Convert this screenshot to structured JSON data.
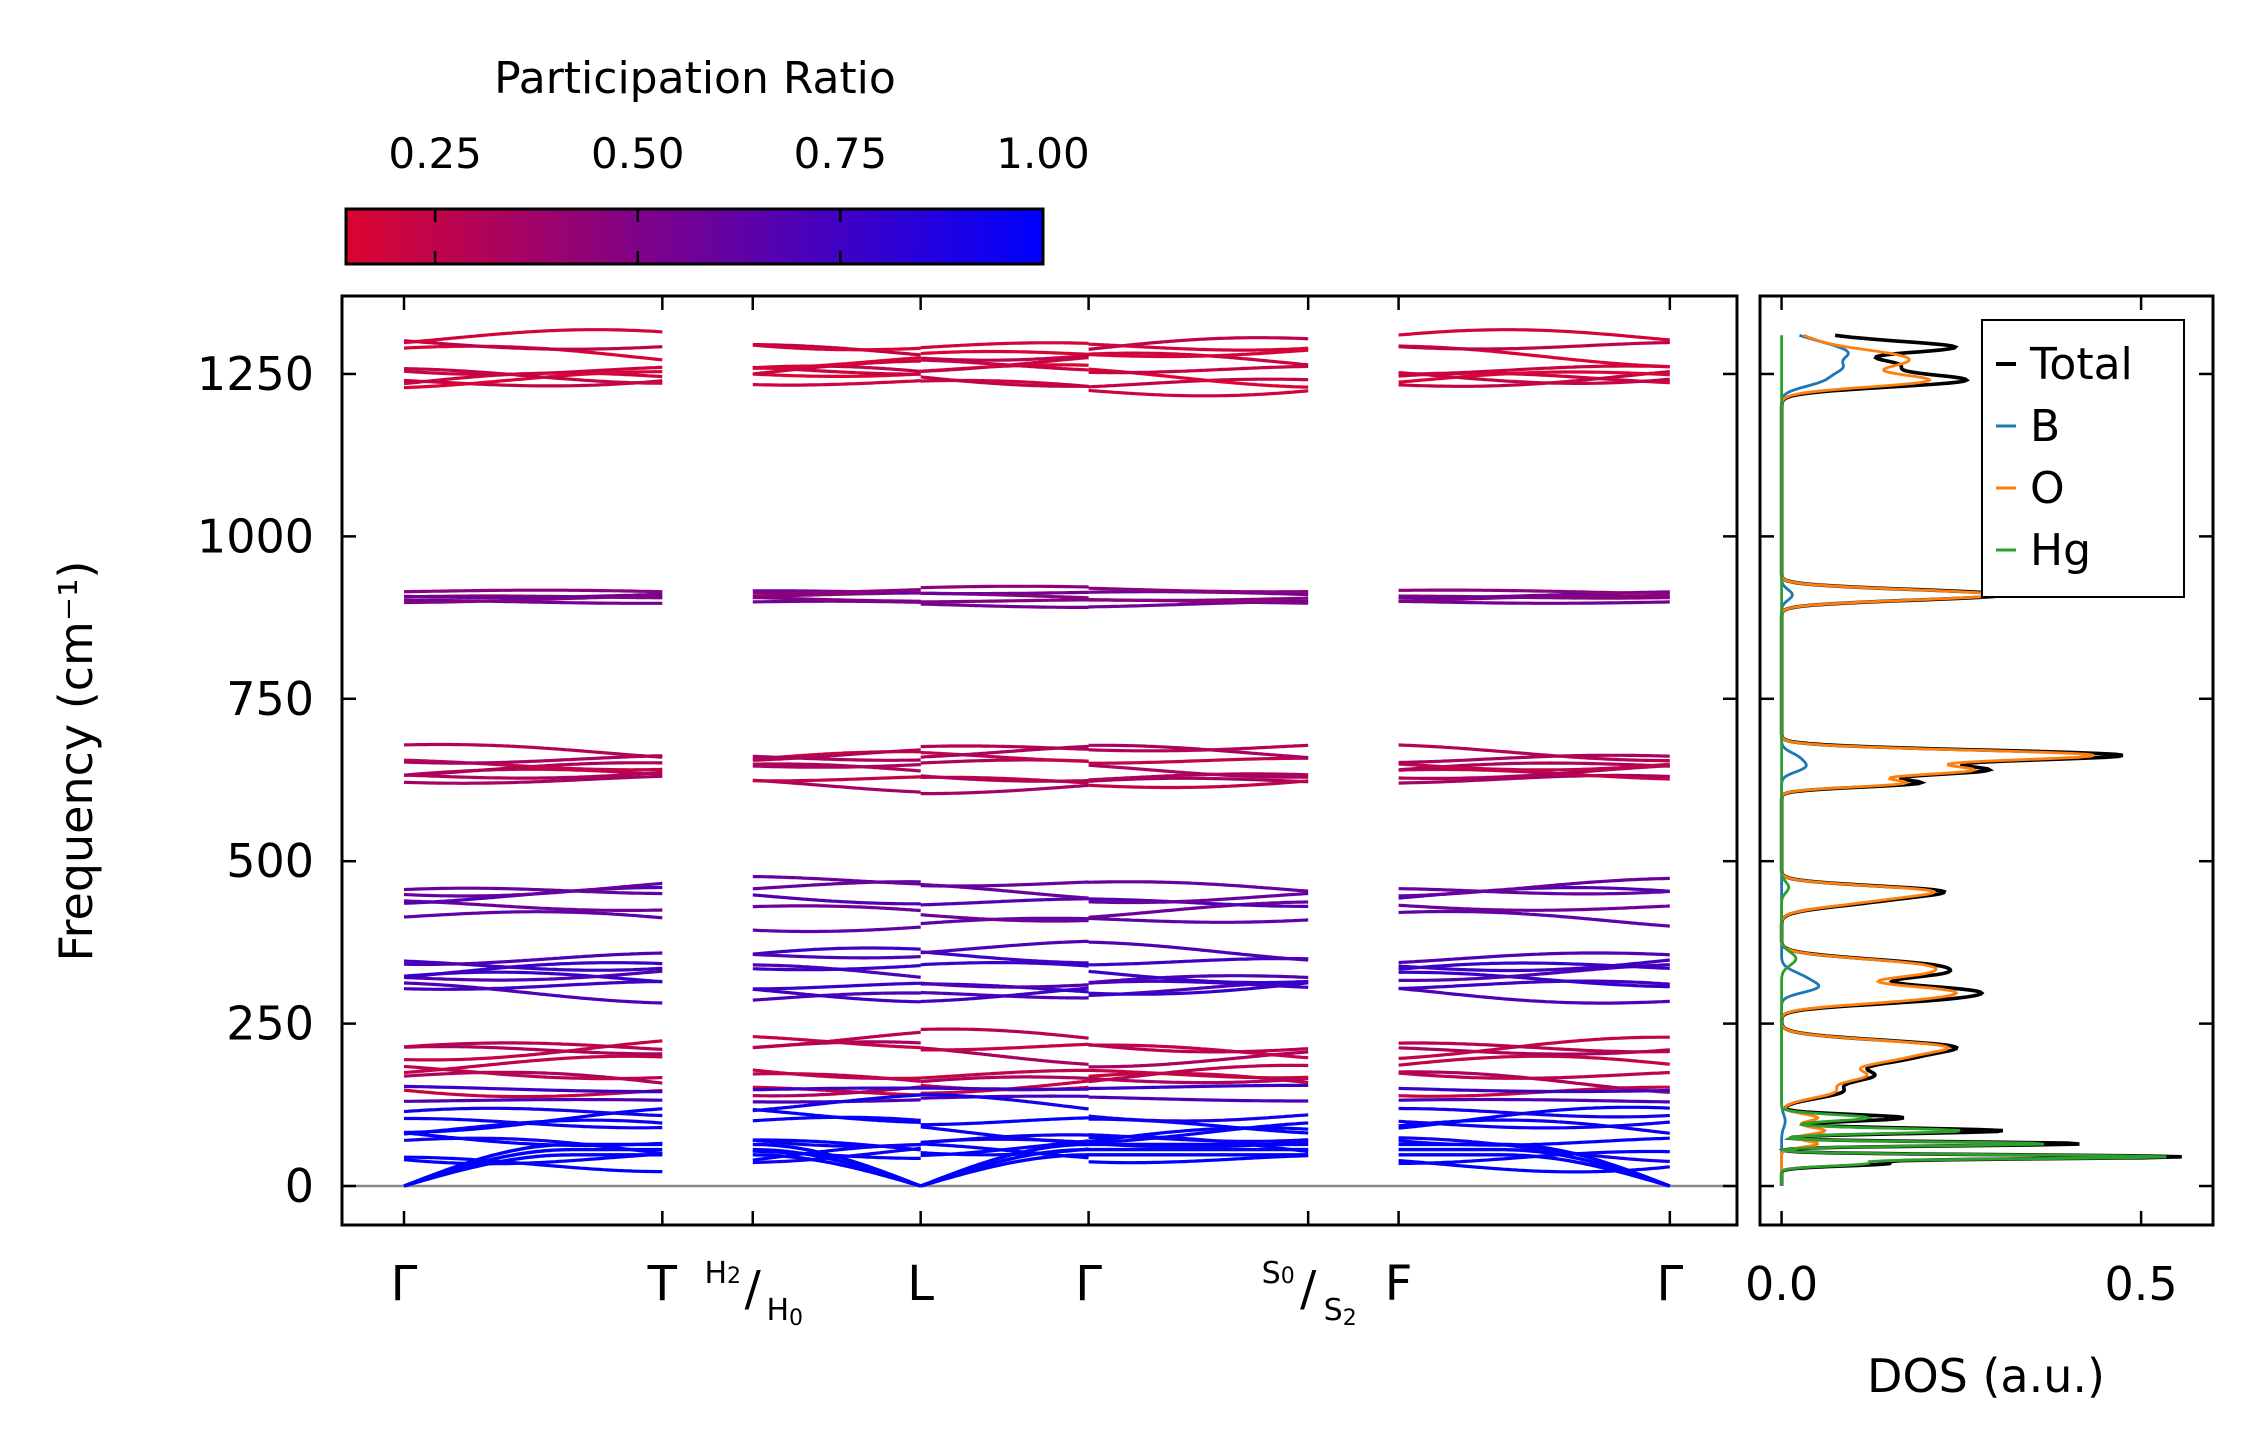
{
  "chart_data": [
    {
      "type": "line",
      "chart": "phonon-band-structure",
      "ylabel": "Frequency (cm⁻¹)",
      "ylim": [
        -60,
        1370
      ],
      "yticks": [
        0,
        250,
        500,
        750,
        1000,
        1250
      ],
      "ytick_labels": [
        "0",
        "250",
        "500",
        "750",
        "1000",
        "1250"
      ],
      "xlim": [
        -0.24,
        5.16
      ],
      "xticks": [
        0,
        1,
        1.35,
        2,
        2.65,
        3.5,
        3.85,
        4.9
      ],
      "k_labels": [
        {
          "base": "Γ"
        },
        {
          "base": "T"
        },
        {
          "top": "H",
          "top_sub": "2",
          "bottom": "H",
          "bottom_sub": "0"
        },
        {
          "base": "L"
        },
        {
          "base": "Γ"
        },
        {
          "top": "S",
          "top_sub": "0",
          "bottom": "S",
          "bottom_sub": "2"
        },
        {
          "base": "F"
        },
        {
          "base": "Γ"
        }
      ],
      "segments": [
        [
          0,
          1
        ],
        [
          1.35,
          2
        ],
        [
          2,
          2.65
        ],
        [
          2.65,
          3.5
        ],
        [
          3.85,
          4.9
        ]
      ],
      "zero_line": 0,
      "colormap": {
        "title": "Participation Ratio",
        "ticks": [
          0.25,
          0.5,
          0.75,
          1.0
        ],
        "tick_labels": [
          "0.25",
          "0.50",
          "0.75",
          "1.00"
        ],
        "vmin": 0.14,
        "vmax": 1.0,
        "low_color": "#dc0430",
        "high_color": "#0000ff"
      },
      "band_groups": [
        {
          "values": [
            1235,
            1242,
            1248,
            1255,
            1262,
            1278,
            1290,
            1298
          ],
          "pr": 0.2
        },
        {
          "values": [
            897,
            902,
            907,
            912,
            917
          ],
          "pr": 0.5
        },
        {
          "values": [
            620,
            627,
            634,
            645,
            655,
            663,
            670
          ],
          "pr": 0.3
        },
        {
          "values": [
            408,
            425,
            442,
            453,
            463
          ],
          "pr": 0.62
        },
        {
          "values": [
            296,
            303,
            310,
            322,
            333,
            348,
            358
          ],
          "pr": 0.74
        },
        {
          "values": [
            152,
            160,
            168,
            178,
            205,
            213,
            220
          ],
          "pr": 0.28
        },
        {
          "values": [
            133,
            150
          ],
          "pr": 0.72
        },
        {
          "values": [
            43,
            53,
            60,
            68,
            78,
            90,
            101,
            118
          ],
          "pr": 0.98
        }
      ],
      "acoustic_branch": {
        "gamma": 0,
        "zone_edge": 40,
        "pr": 1.0
      }
    },
    {
      "type": "line",
      "chart": "density-of-states",
      "xlabel": "DOS (a.u.)",
      "xlim": [
        -0.03,
        0.6
      ],
      "xticks": [
        0.0,
        0.5
      ],
      "xtick_labels": [
        "0.0",
        "0.5"
      ],
      "ylim": [
        -60,
        1370
      ],
      "legend": {
        "position": "top-right",
        "entries": [
          "Total",
          "B",
          "O",
          "Hg"
        ]
      },
      "series": [
        {
          "name": "Total",
          "color": "#000000",
          "peaks": [
            [
              1300,
              0.09,
              12
            ],
            [
              1290,
              0.17,
              8
            ],
            [
              1265,
              0.15,
              10
            ],
            [
              1240,
              0.25,
              10
            ],
            [
              910,
              0.31,
              8
            ],
            [
              663,
              0.47,
              8
            ],
            [
              640,
              0.28,
              8
            ],
            [
              620,
              0.18,
              6
            ],
            [
              455,
              0.18,
              8
            ],
            [
              440,
              0.12,
              10
            ],
            [
              340,
              0.19,
              10
            ],
            [
              325,
              0.14,
              8
            ],
            [
              300,
              0.25,
              10
            ],
            [
              285,
              0.12,
              8
            ],
            [
              215,
              0.22,
              10
            ],
            [
              195,
              0.14,
              10
            ],
            [
              170,
              0.12,
              10
            ],
            [
              145,
              0.08,
              10
            ],
            [
              105,
              0.17,
              5
            ],
            [
              85,
              0.31,
              4
            ],
            [
              65,
              0.42,
              3
            ],
            [
              45,
              0.55,
              3
            ],
            [
              35,
              0.15,
              4
            ]
          ]
        },
        {
          "name": "B",
          "color": "#1f77b4",
          "peaks": [
            [
              1295,
              0.05,
              12
            ],
            [
              1280,
              0.06,
              10
            ],
            [
              1260,
              0.07,
              10
            ],
            [
              1240,
              0.05,
              10
            ],
            [
              910,
              0.015,
              8
            ],
            [
              660,
              0.02,
              8
            ],
            [
              645,
              0.03,
              8
            ],
            [
              320,
              0.03,
              10
            ],
            [
              305,
              0.04,
              8
            ],
            [
              100,
              0.005,
              10
            ]
          ]
        },
        {
          "name": "O",
          "color": "#ff7f0e",
          "peaks": [
            [
              1300,
              0.04,
              12
            ],
            [
              1280,
              0.11,
              10
            ],
            [
              1265,
              0.12,
              10
            ],
            [
              1240,
              0.2,
              10
            ],
            [
              910,
              0.3,
              8
            ],
            [
              663,
              0.43,
              8
            ],
            [
              640,
              0.26,
              8
            ],
            [
              620,
              0.16,
              6
            ],
            [
              455,
              0.17,
              8
            ],
            [
              440,
              0.11,
              10
            ],
            [
              340,
              0.18,
              10
            ],
            [
              325,
              0.12,
              8
            ],
            [
              300,
              0.22,
              10
            ],
            [
              285,
              0.1,
              8
            ],
            [
              215,
              0.21,
              10
            ],
            [
              195,
              0.13,
              10
            ],
            [
              170,
              0.11,
              10
            ],
            [
              145,
              0.07,
              10
            ],
            [
              105,
              0.05,
              6
            ],
            [
              85,
              0.06,
              6
            ],
            [
              65,
              0.05,
              5
            ]
          ]
        },
        {
          "name": "Hg",
          "color": "#2ca02c",
          "peaks": [
            [
              460,
              0.01,
              8
            ],
            [
              350,
              0.02,
              10
            ],
            [
              105,
              0.12,
              5
            ],
            [
              85,
              0.25,
              4
            ],
            [
              65,
              0.37,
              3
            ],
            [
              45,
              0.53,
              3
            ],
            [
              35,
              0.12,
              4
            ]
          ]
        }
      ]
    }
  ]
}
